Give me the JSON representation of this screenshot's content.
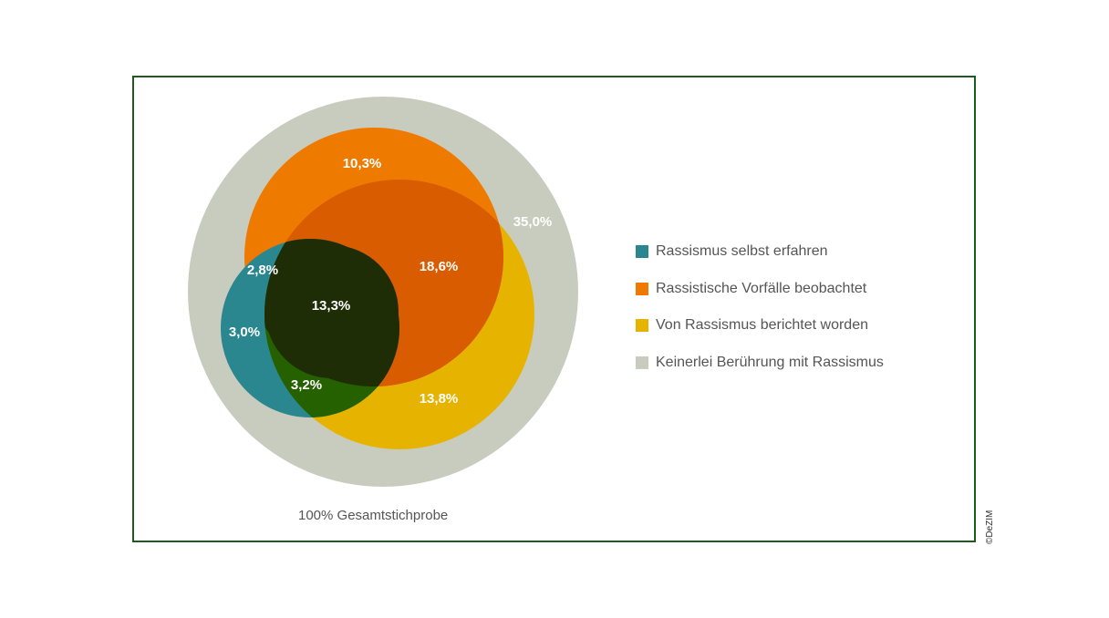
{
  "colors": {
    "frame": "#1f5a1f",
    "total": "#c8ccbf",
    "teal": "#2a8790",
    "orange": "#ef7a00",
    "yellow": "#e6b400",
    "orange_yellow": "#d95c00",
    "teal_orange_yellow": "#1f2d06",
    "teal_yellow": "#266100",
    "text_gray": "#555555"
  },
  "diagram": {
    "segments": [
      {
        "key": "orange_only",
        "value": "10,3%"
      },
      {
        "key": "none",
        "value": "35,0%"
      },
      {
        "key": "orange_yellow",
        "value": "18,6%"
      },
      {
        "key": "teal_orange",
        "value": "2,8%"
      },
      {
        "key": "all_three",
        "value": "13,3%"
      },
      {
        "key": "teal_only",
        "value": "3,0%"
      },
      {
        "key": "teal_yellow",
        "value": "3,2%"
      },
      {
        "key": "yellow_only",
        "value": "13,8%"
      }
    ],
    "total_label": "100% Gesamtstichprobe"
  },
  "legend": [
    {
      "label": "Rassismus selbst erfahren",
      "color": "#2a8790"
    },
    {
      "label": "Rassistische Vorfälle beobachtet",
      "color": "#ef7a00"
    },
    {
      "label": "Von Rassismus berichtet worden",
      "color": "#e6b400"
    },
    {
      "label": "Keinerlei Berührung mit Rassismus",
      "color": "#c8ccbf"
    }
  ],
  "credit": "©DeZIM"
}
